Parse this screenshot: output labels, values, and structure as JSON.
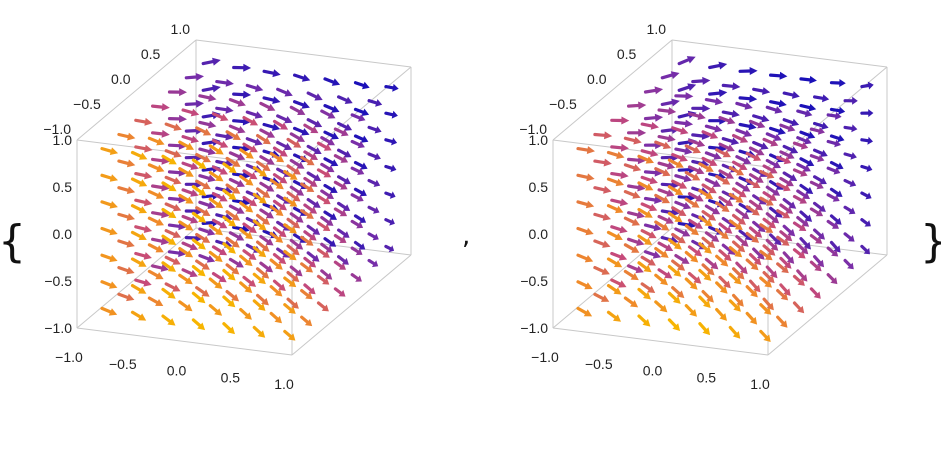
{
  "output": {
    "open_brace": "{",
    "separator": ",",
    "close_brace": "}"
  },
  "chart_data": [
    {
      "type": "vector-field-3d",
      "axes": {
        "x": {
          "range": [
            -1,
            1
          ],
          "ticks": [
            "−1.0",
            "−0.5",
            "0.0",
            "0.5",
            "1.0"
          ]
        },
        "y": {
          "range": [
            -1,
            1
          ],
          "ticks": [
            "−1.0",
            "−0.5",
            "0.0",
            "0.5",
            "1.0"
          ]
        },
        "z": {
          "range": [
            -1,
            1
          ],
          "ticks": [
            "−1.0",
            "−0.5",
            "0.0",
            "0.5",
            "1.0"
          ]
        }
      },
      "grid": false,
      "colormap": [
        "#1a10b8",
        "#7b2fa8",
        "#c64a7a",
        "#f08a2a",
        "#f7b500"
      ]
    },
    {
      "type": "vector-field-3d",
      "axes": {
        "x": {
          "range": [
            -1,
            1
          ],
          "ticks": [
            "−1.0",
            "−0.5",
            "0.0",
            "0.5",
            "1.0"
          ]
        },
        "y": {
          "range": [
            -1,
            1
          ],
          "ticks": [
            "−1.0",
            "−0.5",
            "0.0",
            "0.5",
            "1.0"
          ]
        },
        "z": {
          "range": [
            -1,
            1
          ],
          "ticks": [
            "−1.0",
            "−0.5",
            "0.0",
            "0.5",
            "1.0"
          ]
        }
      },
      "grid": false,
      "colormap": [
        "#1a10b8",
        "#7b2fa8",
        "#c64a7a",
        "#f08a2a",
        "#f7b500"
      ]
    }
  ]
}
